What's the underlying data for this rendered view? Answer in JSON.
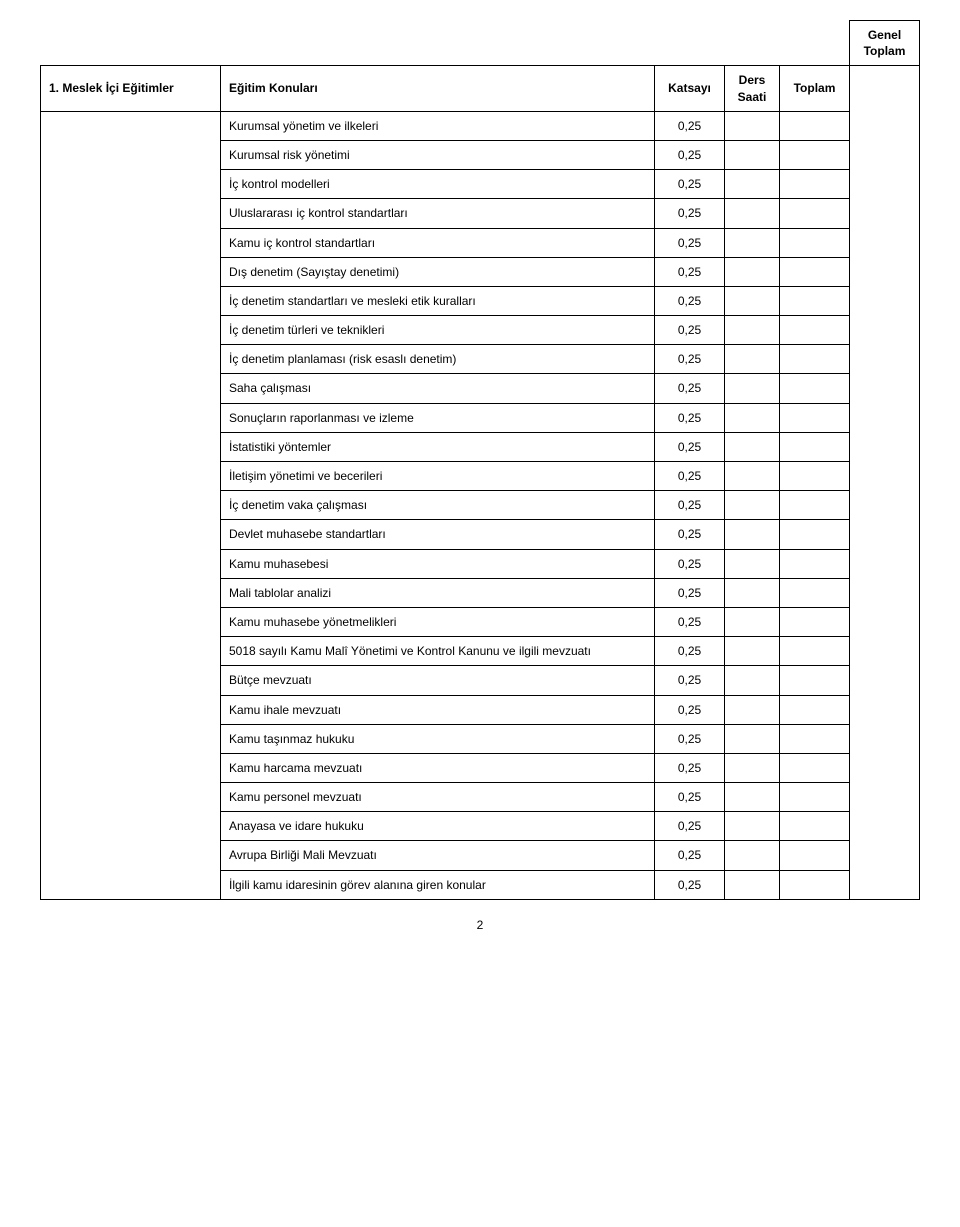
{
  "table": {
    "genel_toplam_header_line1": "Genel",
    "genel_toplam_header_line2": "Toplam",
    "header": {
      "col1": "1. Meslek İçi Eğitimler",
      "col2": "Eğitim Konuları",
      "col3": "Katsayı",
      "col4_line1": "Ders",
      "col4_line2": "Saati",
      "col5": "Toplam"
    },
    "rows": [
      {
        "topic": "Kurumsal yönetim ve ilkeleri",
        "katsayi": "0,25"
      },
      {
        "topic": "Kurumsal risk yönetimi",
        "katsayi": "0,25"
      },
      {
        "topic": "İç kontrol modelleri",
        "katsayi": "0,25"
      },
      {
        "topic": "Uluslararası iç kontrol standartları",
        "katsayi": "0,25"
      },
      {
        "topic": "Kamu iç kontrol standartları",
        "katsayi": "0,25"
      },
      {
        "topic": "Dış denetim (Sayıştay denetimi)",
        "katsayi": "0,25"
      },
      {
        "topic": "İç denetim standartları ve mesleki etik kuralları",
        "katsayi": "0,25"
      },
      {
        "topic": "İç denetim türleri ve teknikleri",
        "katsayi": "0,25"
      },
      {
        "topic": "İç denetim planlaması (risk esaslı denetim)",
        "katsayi": "0,25"
      },
      {
        "topic": "Saha çalışması",
        "katsayi": "0,25"
      },
      {
        "topic": "Sonuçların raporlanması ve izleme",
        "katsayi": "0,25"
      },
      {
        "topic": "İstatistiki yöntemler",
        "katsayi": "0,25"
      },
      {
        "topic": "İletişim yönetimi ve becerileri",
        "katsayi": "0,25"
      },
      {
        "topic": "İç denetim vaka çalışması",
        "katsayi": "0,25"
      },
      {
        "topic": "Devlet muhasebe standartları",
        "katsayi": "0,25"
      },
      {
        "topic": "Kamu muhasebesi",
        "katsayi": "0,25"
      },
      {
        "topic": "Mali tablolar analizi",
        "katsayi": "0,25"
      },
      {
        "topic": "Kamu muhasebe yönetmelikleri",
        "katsayi": "0,25"
      },
      {
        "topic": "5018 sayılı Kamu Malî Yönetimi ve Kontrol Kanunu ve ilgili mevzuatı",
        "katsayi": "0,25"
      },
      {
        "topic": "Bütçe mevzuatı",
        "katsayi": "0,25"
      },
      {
        "topic": "Kamu ihale mevzuatı",
        "katsayi": "0,25"
      },
      {
        "topic": "Kamu taşınmaz hukuku",
        "katsayi": "0,25"
      },
      {
        "topic": "Kamu harcama mevzuatı",
        "katsayi": "0,25"
      },
      {
        "topic": "Kamu personel mevzuatı",
        "katsayi": "0,25"
      },
      {
        "topic": "Anayasa ve idare hukuku",
        "katsayi": "0,25"
      },
      {
        "topic": "Avrupa Birliği Mali Mevzuatı",
        "katsayi": "0,25"
      },
      {
        "topic": "İlgili kamu idaresinin görev alanına giren konular",
        "katsayi": "0,25"
      }
    ],
    "page_number": "2",
    "colors": {
      "border": "#000000",
      "background": "#ffffff",
      "text": "#000000"
    },
    "font_size_pt": 9,
    "font_family": "Verdana"
  }
}
